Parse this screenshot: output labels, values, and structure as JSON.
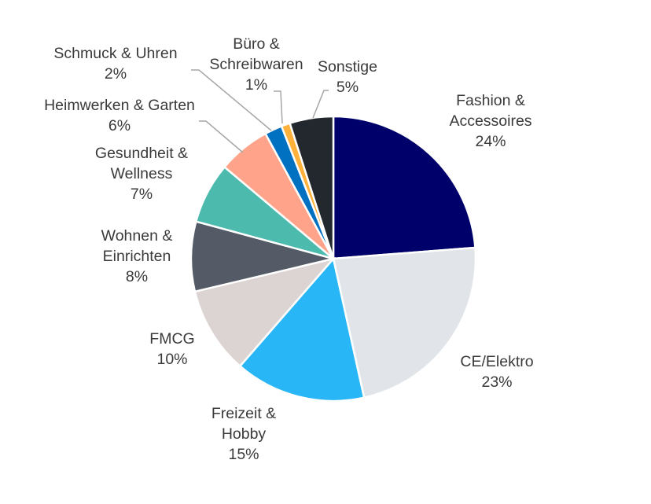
{
  "chart_data": {
    "type": "pie",
    "title": "",
    "slices": [
      {
        "label_lines": [
          "Fashion &",
          "Accessoires"
        ],
        "value": 24,
        "value_label": "24%",
        "color": "#00006b"
      },
      {
        "label_lines": [
          "CE/Elektro"
        ],
        "value": 23,
        "value_label": "23%",
        "color": "#e1e4e8"
      },
      {
        "label_lines": [
          "Freizeit &",
          "Hobby"
        ],
        "value": 15,
        "value_label": "15%",
        "color": "#29b6f6"
      },
      {
        "label_lines": [
          "FMCG"
        ],
        "value": 10,
        "value_label": "10%",
        "color": "#dcd3d3"
      },
      {
        "label_lines": [
          "Wohnen &",
          "Einrichten"
        ],
        "value": 8,
        "value_label": "8%",
        "color": "#545b67"
      },
      {
        "label_lines": [
          "Gesundheit &",
          "Wellness"
        ],
        "value": 7,
        "value_label": "7%",
        "color": "#4dbaae"
      },
      {
        "label_lines": [
          "Heimwerken & Garten"
        ],
        "value": 6,
        "value_label": "6%",
        "color": "#ffa48a"
      },
      {
        "label_lines": [
          "Schmuck & Uhren"
        ],
        "value": 2,
        "value_label": "2%",
        "color": "#0070c0"
      },
      {
        "label_lines": [
          "Büro &",
          "Schreibwaren"
        ],
        "value": 1,
        "value_label": "1%",
        "color": "#ffb13b"
      },
      {
        "label_lines": [
          "Sonstige"
        ],
        "value": 5,
        "value_label": "5%",
        "color": "#23272e"
      }
    ],
    "start": "12 o'clock",
    "direction": "clockwise",
    "legend": "none"
  }
}
